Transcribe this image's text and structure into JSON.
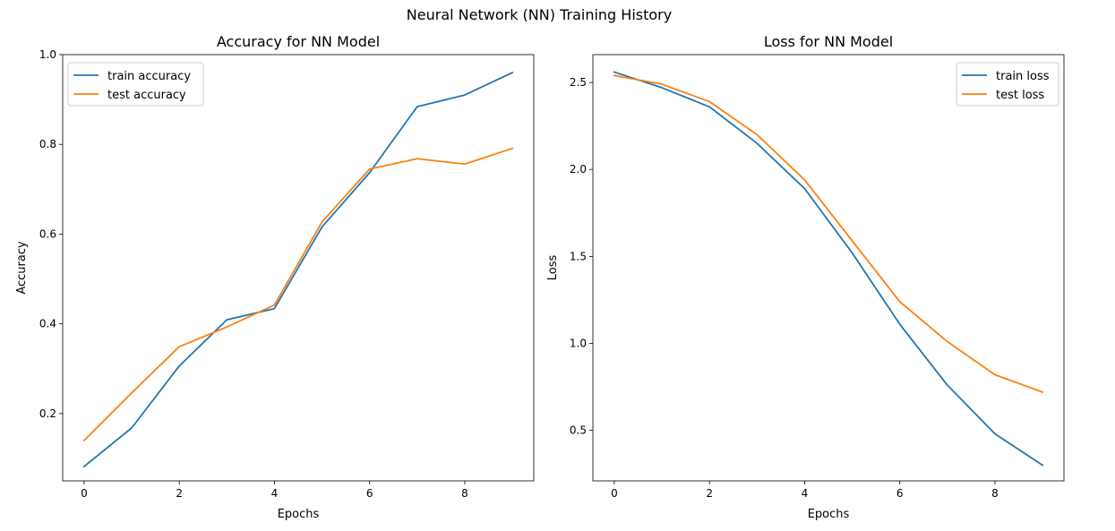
{
  "figure": {
    "title": "Neural Network (NN) Training History"
  },
  "chart_data": [
    {
      "type": "line",
      "title": "Accuracy for NN Model",
      "xlabel": "Epochs",
      "ylabel": "Accuracy",
      "xlim": [
        -0.45,
        9.45
      ],
      "ylim": [
        0.05,
        1.0
      ],
      "xticks": [
        0,
        2,
        4,
        6,
        8
      ],
      "yticks": [
        0.2,
        0.4,
        0.6,
        0.8,
        1.0
      ],
      "xtick_labels": [
        "0",
        "2",
        "4",
        "6",
        "8"
      ],
      "ytick_labels": [
        "0.2",
        "0.4",
        "0.6",
        "0.8",
        "1.0"
      ],
      "legend": "top-left",
      "grid": false,
      "x": [
        0,
        1,
        2,
        3,
        4,
        5,
        6,
        7,
        8,
        9
      ],
      "series": [
        {
          "name": "train accuracy",
          "color": "#1f77b4",
          "values": [
            0.082,
            0.168,
            0.306,
            0.409,
            0.434,
            0.616,
            0.737,
            0.884,
            0.91,
            0.96
          ]
        },
        {
          "name": "test accuracy",
          "color": "#ff7f0e",
          "values": [
            0.14,
            0.246,
            0.349,
            0.393,
            0.442,
            0.627,
            0.745,
            0.768,
            0.756,
            0.791
          ]
        }
      ]
    },
    {
      "type": "line",
      "title": "Loss for NN Model",
      "xlabel": "Epochs",
      "ylabel": "Loss",
      "xlim": [
        -0.45,
        9.45
      ],
      "ylim": [
        0.21,
        2.66
      ],
      "xticks": [
        0,
        2,
        4,
        6,
        8
      ],
      "yticks": [
        0.5,
        1.0,
        1.5,
        2.0,
        2.5
      ],
      "xtick_labels": [
        "0",
        "2",
        "4",
        "6",
        "8"
      ],
      "ytick_labels": [
        "0.5",
        "1.0",
        "1.5",
        "2.0",
        "2.5"
      ],
      "legend": "top-right",
      "grid": false,
      "x": [
        0,
        1,
        2,
        3,
        4,
        5,
        6,
        7,
        8,
        9
      ],
      "series": [
        {
          "name": "train loss",
          "color": "#1f77b4",
          "values": [
            2.56,
            2.47,
            2.36,
            2.15,
            1.89,
            1.52,
            1.11,
            0.76,
            0.48,
            0.3
          ]
        },
        {
          "name": "test loss",
          "color": "#ff7f0e",
          "values": [
            2.54,
            2.49,
            2.39,
            2.2,
            1.94,
            1.59,
            1.24,
            1.01,
            0.82,
            0.72
          ]
        }
      ]
    }
  ]
}
